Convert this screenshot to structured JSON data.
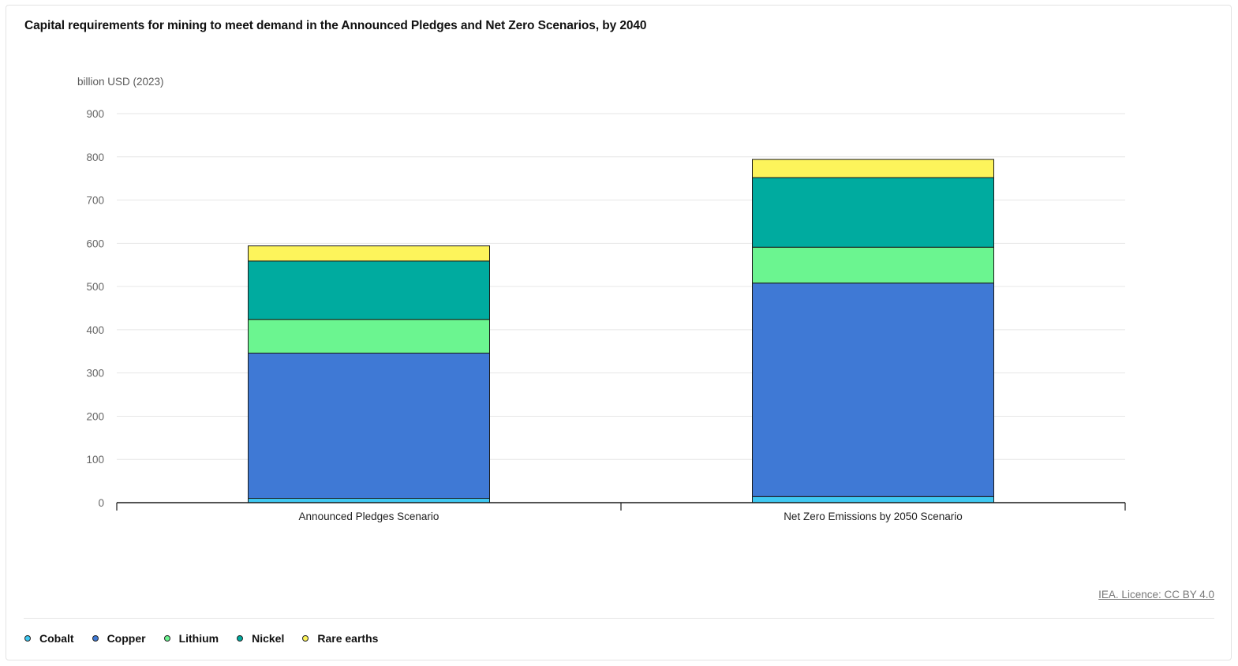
{
  "chart_data": {
    "type": "bar",
    "stacked": true,
    "title": "Capital requirements for mining to meet demand in the Announced Pledges and Net Zero Scenarios, by 2040",
    "ylabel": "billion USD (2023)",
    "xlabel": "",
    "ylim": [
      0,
      900
    ],
    "yticks": [
      0,
      100,
      200,
      300,
      400,
      500,
      600,
      700,
      800,
      900
    ],
    "grid": true,
    "legend_position": "bottom-left",
    "categories": [
      "Announced Pledges Scenario",
      "Net Zero Emissions by 2050 Scenario"
    ],
    "series": [
      {
        "name": "Cobalt",
        "color": "#3fc8f2",
        "values": [
          10,
          14
        ]
      },
      {
        "name": "Copper",
        "color": "#3f79d5",
        "values": [
          336,
          494
        ]
      },
      {
        "name": "Lithium",
        "color": "#6bf590",
        "values": [
          78,
          83
        ]
      },
      {
        "name": "Nickel",
        "color": "#00ab9f",
        "values": [
          135,
          161
        ]
      },
      {
        "name": "Rare earths",
        "color": "#fdf45b",
        "values": [
          35,
          42
        ]
      }
    ]
  },
  "credit": "IEA. Licence: CC BY 4.0"
}
